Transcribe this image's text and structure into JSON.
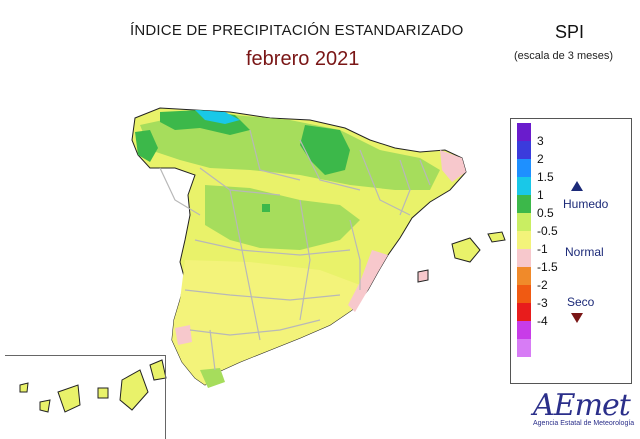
{
  "header": {
    "title": "ÍNDICE DE PRECIPITACIÓN ESTANDARIZADO",
    "period": "febrero 2021",
    "index": "SPI",
    "scale_note": "(escala de 3 meses)"
  },
  "legend": {
    "levels": [
      "3",
      "2",
      "1.5",
      "1",
      "0.5",
      "-0.5",
      "-1",
      "-1.5",
      "-2",
      "-3",
      "-4"
    ],
    "colors": [
      "#6a1ccc",
      "#3b3bdc",
      "#1e90ff",
      "#19c8e8",
      "#3cb84a",
      "#c9ee62",
      "#f3f37a",
      "#f7c8cc",
      "#f08a2a",
      "#f05a12",
      "#e81c1c",
      "#c83ce8",
      "#d77cf5"
    ],
    "humid_label": "Humedo",
    "normal_label": "Normal",
    "dry_label": "Seco"
  },
  "logo": {
    "name": "AEmet",
    "tagline": "Agencia Estatal de Meteorología"
  }
}
